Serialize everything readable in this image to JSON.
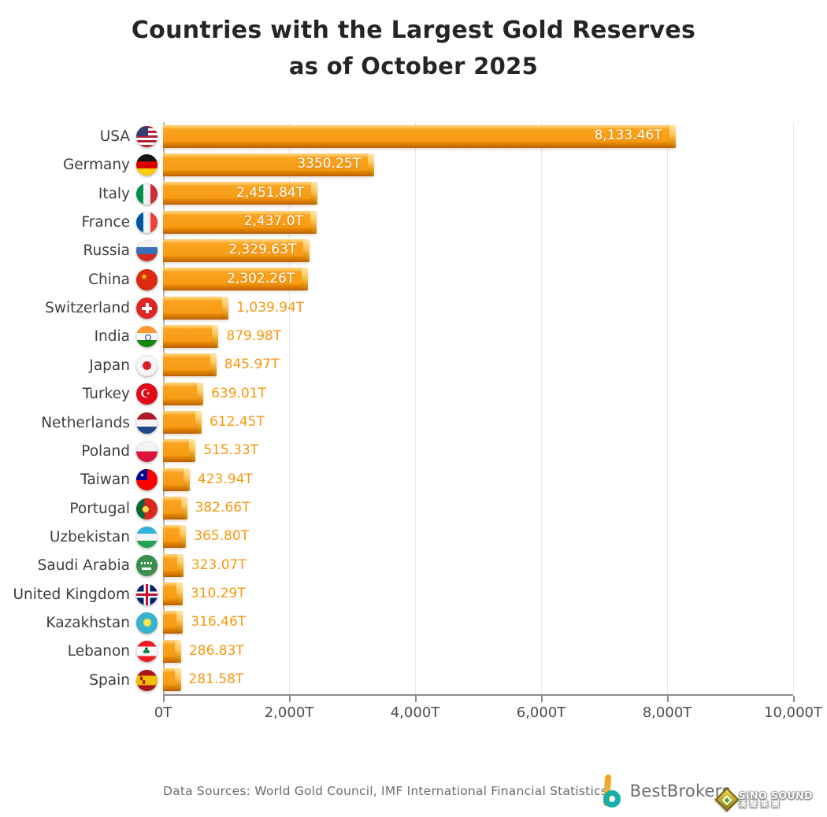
{
  "title": {
    "line1": "Countries with the Largest Gold Reserves",
    "line2": "as of October 2025"
  },
  "chart_data": {
    "type": "bar",
    "orientation": "horizontal",
    "title": "Countries with the Largest Gold Reserves as of October 2025",
    "xlabel": "",
    "ylabel": "",
    "unit": "tonnes (T)",
    "axis_max": 10000,
    "xlim": [
      0,
      10000
    ],
    "grid": "vertical-light",
    "x_ticks": [
      "0T",
      "2,000T",
      "4,000T",
      "6,000T",
      "8,000T",
      "10,000T"
    ],
    "rows": [
      {
        "country": "USA",
        "flag": "usa",
        "value": 8133.46,
        "label": "8,133.46T",
        "label_position": "inside"
      },
      {
        "country": "Germany",
        "flag": "germany",
        "value": 3350.25,
        "label": "3350.25T",
        "label_position": "inside"
      },
      {
        "country": "Italy",
        "flag": "italy",
        "value": 2451.84,
        "label": "2,451.84T",
        "label_position": "inside"
      },
      {
        "country": "France",
        "flag": "france",
        "value": 2437.0,
        "label": "2,437.0T",
        "label_position": "inside"
      },
      {
        "country": "Russia",
        "flag": "russia",
        "value": 2329.63,
        "label": "2,329.63T",
        "label_position": "inside"
      },
      {
        "country": "China",
        "flag": "china",
        "value": 2302.26,
        "label": "2,302.26T",
        "label_position": "inside"
      },
      {
        "country": "Switzerland",
        "flag": "switzerland",
        "value": 1039.94,
        "label": "1,039.94T",
        "label_position": "outside"
      },
      {
        "country": "India",
        "flag": "india",
        "value": 879.98,
        "label": "879.98T",
        "label_position": "outside"
      },
      {
        "country": "Japan",
        "flag": "japan",
        "value": 845.97,
        "label": "845.97T",
        "label_position": "outside"
      },
      {
        "country": "Turkey",
        "flag": "turkey",
        "value": 639.01,
        "label": "639.01T",
        "label_position": "outside"
      },
      {
        "country": "Netherlands",
        "flag": "netherlands",
        "value": 612.45,
        "label": "612.45T",
        "label_position": "outside"
      },
      {
        "country": "Poland",
        "flag": "poland",
        "value": 515.33,
        "label": "515.33T",
        "label_position": "outside"
      },
      {
        "country": "Taiwan",
        "flag": "taiwan",
        "value": 423.94,
        "label": "423.94T",
        "label_position": "outside"
      },
      {
        "country": "Portugal",
        "flag": "portugal",
        "value": 382.66,
        "label": "382.66T",
        "label_position": "outside"
      },
      {
        "country": "Uzbekistan",
        "flag": "uzbekistan",
        "value": 365.8,
        "label": "365.80T",
        "label_position": "outside"
      },
      {
        "country": "Saudi Arabia",
        "flag": "saudi-arabia",
        "value": 323.07,
        "label": "323.07T",
        "label_position": "outside"
      },
      {
        "country": "United Kingdom",
        "flag": "uk",
        "value": 310.29,
        "label": "310.29T",
        "label_position": "outside"
      },
      {
        "country": "Kazakhstan",
        "flag": "kazakhstan",
        "value": 316.46,
        "label": "316.46T",
        "label_position": "outside"
      },
      {
        "country": "Lebanon",
        "flag": "lebanon",
        "value": 286.83,
        "label": "286.83T",
        "label_position": "outside"
      },
      {
        "country": "Spain",
        "flag": "spain",
        "value": 281.58,
        "label": "281.58T",
        "label_position": "outside"
      }
    ]
  },
  "colors": {
    "bar_body": "#F79B14",
    "bar_highlight": "#FFC257",
    "bar_shadow_strip": "#AC5C06",
    "value_inside_text": "#FFFFFF",
    "value_outside_text": "#F8980F",
    "country_label": "#3E3E3E",
    "title_text": "#252525",
    "gridline": "#E7E7E7",
    "axis_line": "#8C8C8C"
  },
  "footer": {
    "source_text": "Data Sources: World Gold Council, IMF International Financial Statistics",
    "brand_name": "BestBrokers",
    "watermark_line1": "SiNO SOUND",
    "watermark_line2": "漢聲集團"
  }
}
